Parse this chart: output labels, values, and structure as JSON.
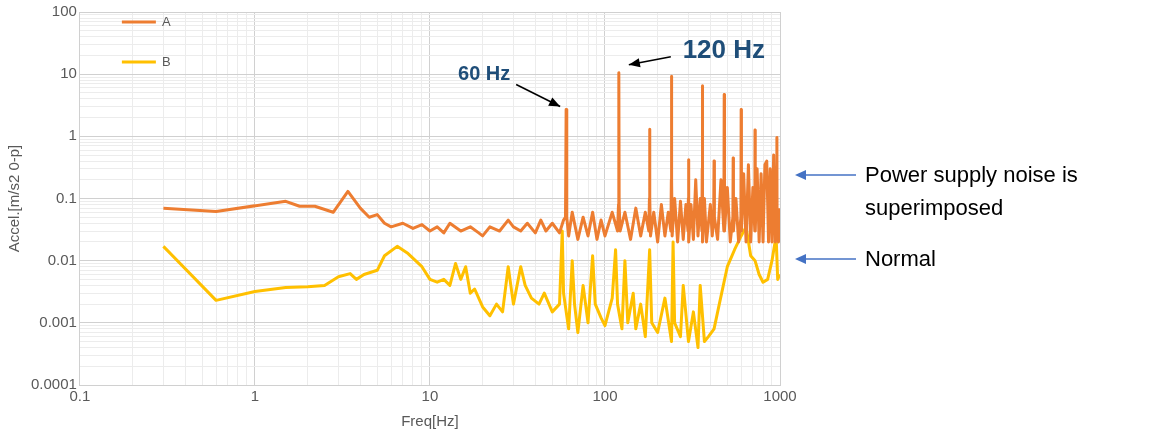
{
  "chart_data": {
    "type": "line",
    "xlabel": "Freq[Hz]",
    "ylabel": "Accel.[m/s2 0-p]",
    "log": "xy",
    "grid": true,
    "legend": "top left",
    "marker": "none",
    "line_style": "solid",
    "xlim": [
      0.1,
      1000
    ],
    "xticks": [
      0.1,
      {
        "value": 0.2,
        "label": null
      },
      {
        "value": 0.3,
        "label": null
      },
      {
        "value": 0.4,
        "label": null
      },
      {
        "value": 0.5,
        "label": null
      },
      {
        "value": 0.6,
        "label": null
      },
      {
        "value": 0.7,
        "label": null
      },
      {
        "value": 0.8,
        "label": null
      },
      {
        "value": 0.9,
        "label": null
      },
      1,
      {
        "value": 2,
        "label": null
      },
      {
        "value": 3,
        "label": null
      },
      {
        "value": 4,
        "label": null
      },
      {
        "value": 5,
        "label": null
      },
      {
        "value": 6,
        "label": null
      },
      {
        "value": 7,
        "label": null
      },
      {
        "value": 8,
        "label": null
      },
      {
        "value": 9,
        "label": null
      },
      10,
      {
        "value": 20,
        "label": null
      },
      {
        "value": 30,
        "label": null
      },
      {
        "value": 40,
        "label": null
      },
      {
        "value": 50,
        "label": null
      },
      {
        "value": 60,
        "label": null
      },
      {
        "value": 70,
        "label": null
      },
      {
        "value": 80,
        "label": null
      },
      {
        "value": 90,
        "label": null
      },
      100,
      {
        "value": 200,
        "label": null
      },
      {
        "value": 300,
        "label": null
      },
      {
        "value": 400,
        "label": null
      },
      {
        "value": 500,
        "label": null
      },
      {
        "value": 600,
        "label": null
      },
      {
        "value": 700,
        "label": null
      },
      {
        "value": 800,
        "label": null
      },
      {
        "value": 900,
        "label": null
      },
      1000
    ],
    "ylim": [
      0.0001,
      100
    ],
    "yticks": [
      0.0001,
      {
        "value": 0.0002,
        "label": null
      },
      {
        "value": 0.0003,
        "label": null
      },
      {
        "value": 0.0004,
        "label": null
      },
      {
        "value": 0.0005,
        "label": null
      },
      {
        "value": 0.0006,
        "label": null
      },
      {
        "value": 0.0007,
        "label": null
      },
      {
        "value": 0.0008,
        "label": null
      },
      {
        "value": 0.0009,
        "label": null
      },
      0.001,
      {
        "value": 0.002,
        "label": null
      },
      {
        "value": 0.003,
        "label": null
      },
      {
        "value": 0.004,
        "label": null
      },
      {
        "value": 0.005,
        "label": null
      },
      {
        "value": 0.006,
        "label": null
      },
      {
        "value": 0.007,
        "label": null
      },
      {
        "value": 0.008,
        "label": null
      },
      {
        "value": 0.009,
        "label": null
      },
      0.01,
      {
        "value": 0.02,
        "label": null
      },
      {
        "value": 0.03,
        "label": null
      },
      {
        "value": 0.04,
        "label": null
      },
      {
        "value": 0.05,
        "label": null
      },
      {
        "value": 0.06,
        "label": null
      },
      {
        "value": 0.07,
        "label": null
      },
      {
        "value": 0.08,
        "label": null
      },
      {
        "value": 0.09,
        "label": null
      },
      0.1,
      {
        "value": 0.2,
        "label": null
      },
      {
        "value": 0.3,
        "label": null
      },
      {
        "value": 0.4,
        "label": null
      },
      {
        "value": 0.5,
        "label": null
      },
      {
        "value": 0.6,
        "label": null
      },
      {
        "value": 0.7,
        "label": null
      },
      {
        "value": 0.8,
        "label": null
      },
      {
        "value": 0.9,
        "label": null
      },
      1,
      {
        "value": 2,
        "label": null
      },
      {
        "value": 3,
        "label": null
      },
      {
        "value": 4,
        "label": null
      },
      {
        "value": 5,
        "label": null
      },
      {
        "value": 6,
        "label": null
      },
      {
        "value": 7,
        "label": null
      },
      {
        "value": 8,
        "label": null
      },
      {
        "value": 9,
        "label": null
      },
      10,
      {
        "value": 20,
        "label": null
      },
      {
        "value": 30,
        "label": null
      },
      {
        "value": 40,
        "label": null
      },
      {
        "value": 50,
        "label": null
      },
      {
        "value": 60,
        "label": null
      },
      {
        "value": 70,
        "label": null
      },
      {
        "value": 80,
        "label": null
      },
      {
        "value": 90,
        "label": null
      },
      100
    ],
    "annotations": [
      {
        "text": "60 Hz",
        "x": 60,
        "y": 2.7
      },
      {
        "text": "120 Hz",
        "x": 120,
        "y": 10.5
      },
      "Power supply noise is superimposed",
      "Normal"
    ],
    "series": [
      {
        "name": "A",
        "color": "#ed7d31",
        "x": [
          0.3,
          0.6,
          1.5,
          1.8,
          2.2,
          2.8,
          3.4,
          4,
          4.5,
          5,
          5.5,
          6,
          7,
          8,
          9,
          10,
          11,
          12,
          13,
          15,
          17,
          19,
          20,
          22,
          25,
          28,
          30,
          33,
          36,
          40,
          43,
          46,
          50,
          55,
          58,
          59.5,
          60,
          60.5,
          62,
          65,
          70,
          75,
          80,
          85,
          90,
          95,
          100,
          110,
          118,
          119.5,
          120,
          120.5,
          122,
          130,
          140,
          150,
          160,
          170,
          178,
          179.5,
          180,
          180.5,
          182,
          190,
          200,
          210,
          220,
          230,
          238,
          239.5,
          240,
          240.5,
          242,
          250,
          260,
          270,
          280,
          290,
          298,
          299.5,
          300,
          300.5,
          302,
          310,
          320,
          330,
          340,
          350,
          358,
          359.5,
          360,
          360.5,
          362,
          370,
          380,
          400,
          410,
          418,
          420,
          422,
          440,
          460,
          478,
          480,
          482,
          500,
          520,
          538,
          540,
          542,
          560,
          580,
          598,
          600,
          602,
          620,
          640,
          660,
          680,
          700,
          718,
          720,
          722,
          740,
          760,
          780,
          800,
          820,
          840,
          860,
          880,
          900,
          920,
          940,
          958,
          960,
          962,
          980,
          1000
        ],
        "values": [
          0.07,
          0.062,
          0.09,
          0.075,
          0.075,
          0.06,
          0.13,
          0.07,
          0.05,
          0.055,
          0.04,
          0.035,
          0.04,
          0.033,
          0.038,
          0.03,
          0.035,
          0.028,
          0.04,
          0.03,
          0.035,
          0.028,
          0.025,
          0.035,
          0.03,
          0.045,
          0.035,
          0.03,
          0.04,
          0.028,
          0.045,
          0.03,
          0.04,
          0.028,
          0.045,
          0.05,
          2.7,
          0.05,
          0.025,
          0.06,
          0.022,
          0.05,
          0.025,
          0.06,
          0.022,
          0.045,
          0.025,
          0.06,
          0.03,
          0.08,
          10.5,
          0.08,
          0.03,
          0.06,
          0.022,
          0.07,
          0.025,
          0.06,
          0.03,
          0.1,
          1.3,
          0.1,
          0.025,
          0.06,
          0.02,
          0.08,
          0.025,
          0.06,
          0.03,
          0.2,
          9.3,
          0.2,
          0.025,
          0.1,
          0.02,
          0.09,
          0.022,
          0.08,
          0.03,
          0.1,
          0.42,
          0.1,
          0.02,
          0.08,
          0.022,
          0.2,
          0.025,
          0.1,
          0.03,
          0.3,
          6.5,
          0.3,
          0.02,
          0.1,
          0.02,
          0.08,
          0.025,
          0.05,
          0.4,
          0.05,
          0.022,
          0.2,
          0.03,
          4.7,
          0.03,
          0.15,
          0.02,
          0.05,
          0.45,
          0.03,
          0.1,
          0.02,
          0.05,
          2.7,
          0.03,
          0.25,
          0.02,
          0.35,
          0.02,
          0.15,
          0.03,
          1.27,
          0.03,
          0.3,
          0.02,
          0.25,
          0.02,
          0.35,
          0.4,
          0.02,
          0.3,
          0.02,
          0.5,
          0.02,
          0.05,
          0.96,
          0.04,
          0.02,
          0.07
        ]
      },
      {
        "name": "B",
        "color": "#ffc000",
        "x": [
          0.3,
          0.6,
          1,
          1.5,
          2,
          2.5,
          3,
          3.5,
          3.8,
          4.2,
          5,
          5.5,
          6.5,
          7.5,
          9,
          10,
          11,
          12,
          13,
          14,
          15,
          16,
          17,
          18,
          20,
          22,
          24,
          26,
          28,
          30,
          33,
          35,
          38,
          42,
          45,
          50,
          55,
          57,
          58,
          62,
          65,
          67,
          70,
          75,
          80,
          85,
          88,
          95,
          100,
          110,
          115,
          118,
          125,
          130,
          135,
          145,
          150,
          160,
          170,
          180,
          185,
          200,
          220,
          240,
          245,
          250,
          270,
          280,
          300,
          320,
          340,
          350,
          370,
          390,
          420,
          450,
          500,
          550,
          600,
          640,
          680,
          720,
          760,
          800,
          850,
          900,
          950,
          970,
          1000
        ],
        "values": [
          0.017,
          0.0023,
          0.0032,
          0.0037,
          0.0038,
          0.004,
          0.0055,
          0.0062,
          0.005,
          0.006,
          0.007,
          0.012,
          0.017,
          0.013,
          0.008,
          0.005,
          0.0045,
          0.005,
          0.004,
          0.009,
          0.005,
          0.008,
          0.003,
          0.0035,
          0.0018,
          0.0013,
          0.002,
          0.0015,
          0.008,
          0.002,
          0.008,
          0.004,
          0.0025,
          0.002,
          0.003,
          0.0015,
          0.002,
          0.03,
          0.003,
          0.0008,
          0.01,
          0.002,
          0.0007,
          0.004,
          0.001,
          0.012,
          0.002,
          0.0012,
          0.0009,
          0.0025,
          0.015,
          0.002,
          0.0008,
          0.01,
          0.001,
          0.003,
          0.0008,
          0.002,
          0.0006,
          0.015,
          0.001,
          0.0007,
          0.0025,
          0.0005,
          0.02,
          0.001,
          0.0006,
          0.004,
          0.0005,
          0.0015,
          0.0004,
          0.004,
          0.0005,
          0.0006,
          0.0008,
          0.002,
          0.008,
          0.015,
          0.025,
          0.035,
          0.012,
          0.01,
          0.006,
          0.0045,
          0.005,
          0.01,
          0.025,
          0.005,
          0.006
        ]
      }
    ]
  }
}
